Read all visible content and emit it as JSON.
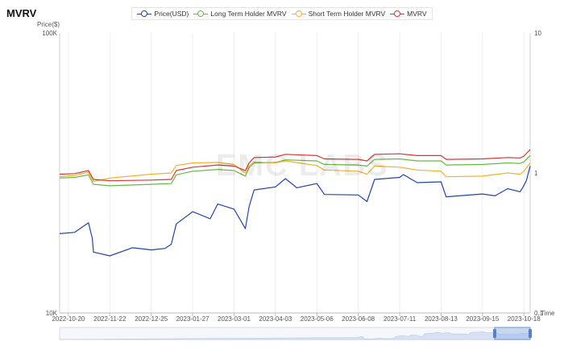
{
  "app": {
    "title": "MVRV",
    "watermark": "EMC LABS"
  },
  "legend": [
    {
      "label": "Price(USD)",
      "color": "#2244aa"
    },
    {
      "label": "Long Term Holder MVRV",
      "color": "#66b844"
    },
    {
      "label": "Short Term Holder MVRV",
      "color": "#f5b02a"
    },
    {
      "label": "MVRV",
      "color": "#dd3333"
    }
  ],
  "chart_data": {
    "type": "line",
    "title": "MVRV",
    "y_left": {
      "label": "Price($)",
      "scale": "log",
      "range": [
        10000,
        100000
      ],
      "ticks": [
        "100K",
        "10K"
      ]
    },
    "y_right": {
      "label": "",
      "scale": "log",
      "range": [
        0.1,
        10
      ],
      "ticks": [
        "10",
        "1",
        "0.1"
      ]
    },
    "x_axis_label": "Time",
    "date_range": [
      "2022-10-13",
      "2023-10-23"
    ],
    "x_ticks": [
      "2022-10-20",
      "2022-11-22",
      "2022-12-25",
      "2023-01-27",
      "2023-03-01",
      "2023-04-03",
      "2023-05-06",
      "2023-06-08",
      "2023-07-11",
      "2023-08-13",
      "2023-09-15",
      "2023-10-18"
    ],
    "series": [
      {
        "name": "Price(USD)",
        "axis": "left",
        "color": "#2244aa",
        "points": [
          [
            "2022-10-13",
            19200
          ],
          [
            "2022-10-25",
            19400
          ],
          [
            "2022-11-05",
            21000
          ],
          [
            "2022-11-08",
            18500
          ],
          [
            "2022-11-09",
            16500
          ],
          [
            "2022-11-22",
            16000
          ],
          [
            "2022-12-10",
            17100
          ],
          [
            "2022-12-25",
            16800
          ],
          [
            "2023-01-05",
            17000
          ],
          [
            "2023-01-10",
            17600
          ],
          [
            "2023-01-14",
            20800
          ],
          [
            "2023-01-27",
            23000
          ],
          [
            "2023-02-10",
            21700
          ],
          [
            "2023-02-16",
            24500
          ],
          [
            "2023-03-01",
            23500
          ],
          [
            "2023-03-10",
            20000
          ],
          [
            "2023-03-13",
            24000
          ],
          [
            "2023-03-17",
            27500
          ],
          [
            "2023-04-03",
            28200
          ],
          [
            "2023-04-11",
            30200
          ],
          [
            "2023-04-20",
            28000
          ],
          [
            "2023-05-06",
            29000
          ],
          [
            "2023-05-12",
            26500
          ],
          [
            "2023-06-08",
            26400
          ],
          [
            "2023-06-15",
            25000
          ],
          [
            "2023-06-21",
            30000
          ],
          [
            "2023-07-11",
            30500
          ],
          [
            "2023-07-14",
            31200
          ],
          [
            "2023-07-25",
            29200
          ],
          [
            "2023-08-13",
            29400
          ],
          [
            "2023-08-17",
            26000
          ],
          [
            "2023-09-15",
            26600
          ],
          [
            "2023-09-25",
            26200
          ],
          [
            "2023-10-05",
            27800
          ],
          [
            "2023-10-15",
            27100
          ],
          [
            "2023-10-18",
            28500
          ],
          [
            "2023-10-20",
            29700
          ],
          [
            "2023-10-23",
            33500
          ]
        ]
      },
      {
        "name": "Long Term Holder MVRV",
        "axis": "right",
        "color": "#66b844",
        "points": [
          [
            "2022-10-13",
            0.92
          ],
          [
            "2022-10-25",
            0.93
          ],
          [
            "2022-11-05",
            0.97
          ],
          [
            "2022-11-09",
            0.83
          ],
          [
            "2022-11-22",
            0.81
          ],
          [
            "2022-12-25",
            0.83
          ],
          [
            "2023-01-10",
            0.84
          ],
          [
            "2023-01-14",
            0.97
          ],
          [
            "2023-01-27",
            1.03
          ],
          [
            "2023-02-16",
            1.06
          ],
          [
            "2023-03-01",
            1.04
          ],
          [
            "2023-03-10",
            0.95
          ],
          [
            "2023-03-13",
            1.09
          ],
          [
            "2023-03-17",
            1.18
          ],
          [
            "2023-04-03",
            1.19
          ],
          [
            "2023-04-11",
            1.24
          ],
          [
            "2023-05-06",
            1.22
          ],
          [
            "2023-05-12",
            1.15
          ],
          [
            "2023-06-08",
            1.14
          ],
          [
            "2023-06-15",
            1.12
          ],
          [
            "2023-06-21",
            1.25
          ],
          [
            "2023-07-11",
            1.26
          ],
          [
            "2023-07-25",
            1.22
          ],
          [
            "2023-08-13",
            1.22
          ],
          [
            "2023-08-17",
            1.14
          ],
          [
            "2023-09-15",
            1.15
          ],
          [
            "2023-10-05",
            1.18
          ],
          [
            "2023-10-15",
            1.17
          ],
          [
            "2023-10-18",
            1.2
          ],
          [
            "2023-10-23",
            1.33
          ]
        ]
      },
      {
        "name": "Short Term Holder MVRV",
        "axis": "right",
        "color": "#f5b02a",
        "points": [
          [
            "2022-10-13",
            0.94
          ],
          [
            "2022-10-25",
            0.96
          ],
          [
            "2022-11-05",
            1.01
          ],
          [
            "2022-11-09",
            0.87
          ],
          [
            "2022-11-22",
            0.92
          ],
          [
            "2022-12-25",
            0.98
          ],
          [
            "2023-01-10",
            1.0
          ],
          [
            "2023-01-14",
            1.13
          ],
          [
            "2023-01-27",
            1.18
          ],
          [
            "2023-02-16",
            1.19
          ],
          [
            "2023-03-01",
            1.15
          ],
          [
            "2023-03-10",
            1.0
          ],
          [
            "2023-03-13",
            1.12
          ],
          [
            "2023-03-17",
            1.2
          ],
          [
            "2023-04-03",
            1.18
          ],
          [
            "2023-04-11",
            1.22
          ],
          [
            "2023-05-06",
            1.13
          ],
          [
            "2023-05-12",
            1.05
          ],
          [
            "2023-06-08",
            1.03
          ],
          [
            "2023-06-15",
            0.98
          ],
          [
            "2023-06-21",
            1.12
          ],
          [
            "2023-07-11",
            1.1
          ],
          [
            "2023-07-25",
            1.05
          ],
          [
            "2023-08-13",
            1.03
          ],
          [
            "2023-08-17",
            0.94
          ],
          [
            "2023-09-15",
            0.95
          ],
          [
            "2023-10-05",
            1.0
          ],
          [
            "2023-10-15",
            0.98
          ],
          [
            "2023-10-18",
            1.03
          ],
          [
            "2023-10-23",
            1.18
          ]
        ]
      },
      {
        "name": "MVRV",
        "axis": "right",
        "color": "#dd3333",
        "points": [
          [
            "2022-10-13",
            0.98
          ],
          [
            "2022-10-25",
            0.99
          ],
          [
            "2022-11-05",
            1.04
          ],
          [
            "2022-11-09",
            0.9
          ],
          [
            "2022-11-22",
            0.88
          ],
          [
            "2022-12-25",
            0.89
          ],
          [
            "2023-01-10",
            0.9
          ],
          [
            "2023-01-14",
            1.04
          ],
          [
            "2023-01-27",
            1.1
          ],
          [
            "2023-02-16",
            1.14
          ],
          [
            "2023-03-01",
            1.12
          ],
          [
            "2023-03-10",
            1.04
          ],
          [
            "2023-03-13",
            1.18
          ],
          [
            "2023-03-17",
            1.29
          ],
          [
            "2023-04-03",
            1.3
          ],
          [
            "2023-04-11",
            1.36
          ],
          [
            "2023-05-06",
            1.33
          ],
          [
            "2023-05-12",
            1.26
          ],
          [
            "2023-06-08",
            1.25
          ],
          [
            "2023-06-15",
            1.22
          ],
          [
            "2023-06-21",
            1.36
          ],
          [
            "2023-07-11",
            1.37
          ],
          [
            "2023-07-25",
            1.33
          ],
          [
            "2023-08-13",
            1.33
          ],
          [
            "2023-08-17",
            1.25
          ],
          [
            "2023-09-15",
            1.26
          ],
          [
            "2023-10-05",
            1.29
          ],
          [
            "2023-10-15",
            1.28
          ],
          [
            "2023-10-18",
            1.32
          ],
          [
            "2023-10-23",
            1.47
          ]
        ]
      }
    ]
  }
}
